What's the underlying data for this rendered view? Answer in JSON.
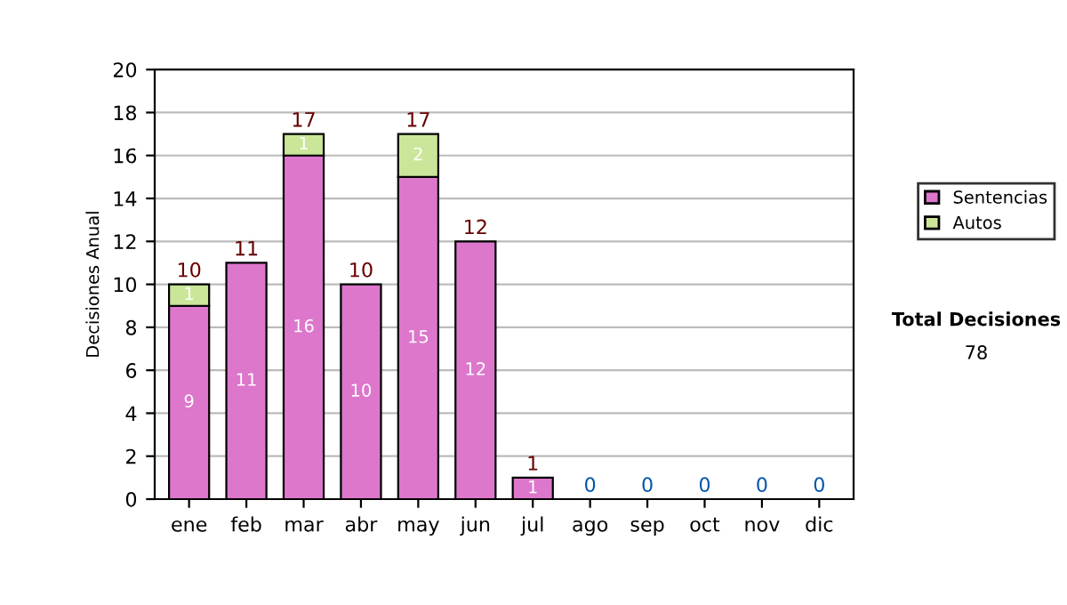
{
  "chart_data": {
    "type": "bar",
    "stacked": true,
    "ylabel": "Decisiones Anual",
    "categories": [
      "ene",
      "feb",
      "mar",
      "abr",
      "may",
      "jun",
      "jul",
      "ago",
      "sep",
      "oct",
      "nov",
      "dic"
    ],
    "series": [
      {
        "name": "Sentencias",
        "color": "#dd77cc",
        "values": [
          9,
          11,
          16,
          10,
          15,
          12,
          1,
          0,
          0,
          0,
          0,
          0
        ],
        "value_labels": [
          "9",
          "11",
          "16",
          "10",
          "15",
          "12",
          "1",
          null,
          null,
          null,
          null,
          null
        ]
      },
      {
        "name": "Autos",
        "color": "#cce699",
        "values": [
          1,
          0,
          1,
          0,
          2,
          0,
          0,
          0,
          0,
          0,
          0,
          0
        ],
        "value_labels": [
          "1",
          null,
          "1",
          null,
          "2",
          null,
          null,
          null,
          null,
          null,
          null,
          null
        ]
      }
    ],
    "totals": [
      "10",
      "11",
      "17",
      "10",
      "17",
      "12",
      "1",
      "0",
      "0",
      "0",
      "0",
      "0"
    ],
    "ylim": [
      0,
      20
    ],
    "yticks": [
      0,
      2,
      4,
      6,
      8,
      10,
      12,
      14,
      16,
      18,
      20
    ],
    "grid": "y",
    "legend": "right",
    "annotations": [
      "Total Decisiones",
      "78"
    ]
  }
}
